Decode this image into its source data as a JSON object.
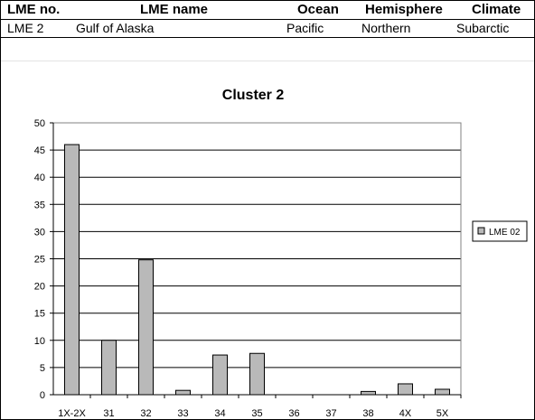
{
  "table": {
    "headers": [
      "LME no.",
      "LME name",
      "Ocean",
      "Hemisphere",
      "Climate"
    ],
    "row": [
      "LME 2",
      "Gulf of Alaska",
      "Pacific",
      "Northern",
      "Subarctic"
    ]
  },
  "chart_data": {
    "type": "bar",
    "title": "Cluster 2",
    "categories": [
      "1X-2X",
      "31",
      "32",
      "33",
      "34",
      "35",
      "36",
      "37",
      "38",
      "4X",
      "5X"
    ],
    "series": [
      {
        "name": "LME 02",
        "values": [
          46,
          10,
          24.8,
          0.8,
          7.3,
          7.6,
          0,
          0,
          0.6,
          2,
          1
        ]
      }
    ],
    "ylim": [
      0,
      50
    ],
    "yticks": [
      0,
      5,
      10,
      15,
      20,
      25,
      30,
      35,
      40,
      45,
      50
    ],
    "grid": true,
    "legend": "right",
    "colors": {
      "bar": "#b9b9b9",
      "grid": "#000000",
      "frame": "#808080"
    }
  }
}
